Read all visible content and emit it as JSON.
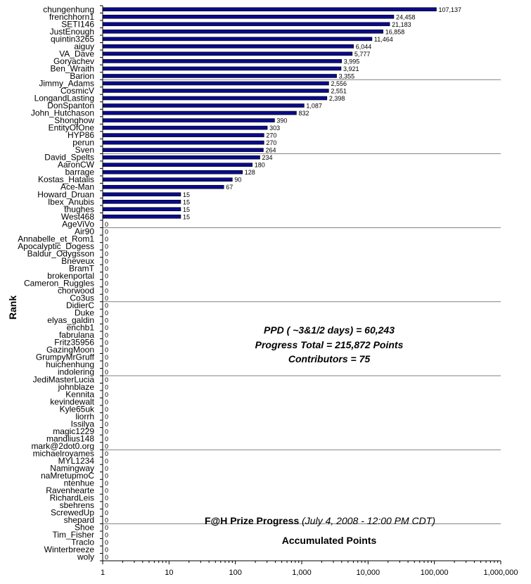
{
  "chart_data": {
    "type": "bar",
    "orientation": "horizontal",
    "x_scale": "log",
    "xlim": [
      1,
      1000000
    ],
    "x_ticks": [
      "1",
      "10",
      "100",
      "1,000",
      "10,000",
      "100,000",
      "1,000,000"
    ],
    "x_tick_values": [
      1,
      10,
      100,
      1000,
      10000,
      100000,
      1000000
    ],
    "ylabel": "Rank",
    "grid": "horizontal",
    "bar_color": "#0a0a8c",
    "annotations": {
      "ppd": "PPD ( ~3&1/2 days) = 60,243",
      "progress": "Progress Total = 215,872 Points",
      "contributors": "Contributors = 75",
      "title_bold": "F@H Prize Progress",
      "title_italic": "(July 4, 2008 - 12:00 PM CDT)",
      "subtitle": "Accumulated Points"
    },
    "categories": [
      "chungenhung",
      "frenchhorn1",
      "SETI146",
      "JustEnough",
      "quintin3265",
      "aiguy",
      "VA_Dave",
      "Goryachev",
      "Ben_Wraith",
      "Barion",
      "Jimmy_Adams",
      "CosmicV",
      "LongandLasting",
      "DonSpanton",
      "John_Hutchason",
      "Shonghow",
      "EntityOfOne",
      "HYP86",
      "perun",
      "Sven",
      "David_Spelts",
      "AaronCW",
      "barrage",
      "Kostas_Hatalis",
      "Ace-Man",
      "Howard_Druan",
      "Ibex_Anubis",
      "thughes",
      "West468",
      "AgeViVo",
      "Air90",
      "Annabelle_et_Rom1",
      "Apocalyptic_Dogess",
      "Baldur_Odygsson",
      "Bneveux",
      "BramT",
      "brokenportal",
      "Cameron_Ruggles",
      "chorwood",
      "Co3us",
      "DidierC",
      "Duke",
      "elyas_galdin",
      "enchb1",
      "fabrulana",
      "Fritz35956",
      "GazingMoon",
      "GrumpyMrGruff",
      "huichenhung",
      "indolering",
      "JediMasterLucia",
      "johnblaze",
      "Kennita",
      "kevindewalt",
      "Kyle65uk",
      "liorrh",
      "Issilya",
      "magic1229",
      "mandlius148",
      "mark@2dot0.org",
      "michaelroyames",
      "MYL1234",
      "Namingway",
      "naMretupmoC",
      "ntenhue",
      "Ravenhearte",
      "RichardLeis",
      "sbehrens",
      "ScrewedUp",
      "shepard",
      "Shoe",
      "Tim_Fisher",
      "Traclo",
      "Winterbreeze",
      "woly"
    ],
    "values": [
      107137,
      24458,
      21183,
      16858,
      11464,
      6044,
      5777,
      3995,
      3921,
      3355,
      2556,
      2551,
      2398,
      1087,
      832,
      390,
      303,
      270,
      270,
      264,
      234,
      180,
      128,
      90,
      67,
      15,
      15,
      15,
      15,
      0,
      0,
      0,
      0,
      0,
      0,
      0,
      0,
      0,
      0,
      0,
      0,
      0,
      0,
      0,
      0,
      0,
      0,
      0,
      0,
      0,
      0,
      0,
      0,
      0,
      0,
      0,
      0,
      0,
      0,
      0,
      0,
      0,
      0,
      0,
      0,
      0,
      0,
      0,
      0,
      0,
      0,
      0,
      0,
      0,
      0
    ],
    "value_labels": [
      "107,137",
      "24,458",
      "21,183",
      "16,858",
      "11,464",
      "6,044",
      "5,777",
      "3,995",
      "3,921",
      "3,355",
      "2,556",
      "2,551",
      "2,398",
      "1,087",
      "832",
      "390",
      "303",
      "270",
      "270",
      "264",
      "234",
      "180",
      "128",
      "90",
      "67",
      "15",
      "15",
      "15",
      "15",
      "0",
      "0",
      "0",
      "0",
      "0",
      "0",
      "0",
      "0",
      "0",
      "0",
      "0",
      "0",
      "0",
      "0",
      "0",
      "0",
      "0",
      "0",
      "0",
      "0",
      "0",
      "0",
      "0",
      "0",
      "0",
      "0",
      "0",
      "0",
      "0",
      "0",
      "0",
      "0",
      "0",
      "0",
      "0",
      "0",
      "0",
      "0",
      "0",
      "0",
      "0",
      "0",
      "0",
      "0",
      "0",
      "0"
    ]
  }
}
